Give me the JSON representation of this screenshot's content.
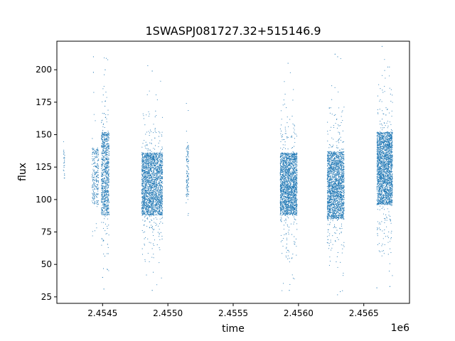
{
  "chart_data": {
    "type": "scatter",
    "title": "1SWASPJ081727.32+515146.9",
    "xlabel": "time",
    "ylabel": "flux",
    "x_offset_label": "1e6",
    "xlim": [
      2454150,
      2456850
    ],
    "ylim": [
      20,
      222
    ],
    "xticks": [
      2454500,
      2455000,
      2455500,
      2456000,
      2456500
    ],
    "xtick_labels": [
      "2.4545",
      "2.4550",
      "2.4555",
      "2.4560",
      "2.4565"
    ],
    "yticks": [
      25,
      50,
      75,
      100,
      125,
      150,
      175,
      200
    ],
    "ytick_labels": [
      "25",
      "50",
      "75",
      "100",
      "125",
      "150",
      "175",
      "200"
    ],
    "grid": false,
    "legend": "none",
    "marker_color": "#1f77b4",
    "clusters": [
      {
        "x_start": 2454200,
        "x_end": 2454210,
        "y_center": 128,
        "y_spread": 12,
        "points": 25
      },
      {
        "x_start": 2454420,
        "x_end": 2454470,
        "y_center": 118,
        "y_spread": 22,
        "points": 260
      },
      {
        "x_start": 2454490,
        "x_end": 2454550,
        "y_center": 120,
        "y_spread": 32,
        "points": 900
      },
      {
        "x_start": 2454800,
        "x_end": 2454960,
        "y_center": 112,
        "y_spread": 24,
        "points": 2400
      },
      {
        "x_start": 2455140,
        "x_end": 2455160,
        "y_center": 122,
        "y_spread": 20,
        "points": 120
      },
      {
        "x_start": 2455860,
        "x_end": 2455990,
        "y_center": 112,
        "y_spread": 24,
        "points": 2200
      },
      {
        "x_start": 2456220,
        "x_end": 2456350,
        "y_center": 111,
        "y_spread": 26,
        "points": 2200
      },
      {
        "x_start": 2456600,
        "x_end": 2456720,
        "y_center": 124,
        "y_spread": 28,
        "points": 2400
      }
    ],
    "outliers": [
      {
        "x": 2454430,
        "y": 210
      },
      {
        "x": 2454430,
        "y": 198
      },
      {
        "x": 2454500,
        "y": 40
      },
      {
        "x": 2454510,
        "y": 31
      },
      {
        "x": 2454520,
        "y": 200
      },
      {
        "x": 2454880,
        "y": 199
      },
      {
        "x": 2454880,
        "y": 30
      },
      {
        "x": 2455920,
        "y": 205
      },
      {
        "x": 2455930,
        "y": 30
      },
      {
        "x": 2456280,
        "y": 212
      },
      {
        "x": 2456300,
        "y": 210
      },
      {
        "x": 2456320,
        "y": 29
      },
      {
        "x": 2456640,
        "y": 218
      },
      {
        "x": 2456600,
        "y": 32
      },
      {
        "x": 2456700,
        "y": 33
      }
    ]
  }
}
